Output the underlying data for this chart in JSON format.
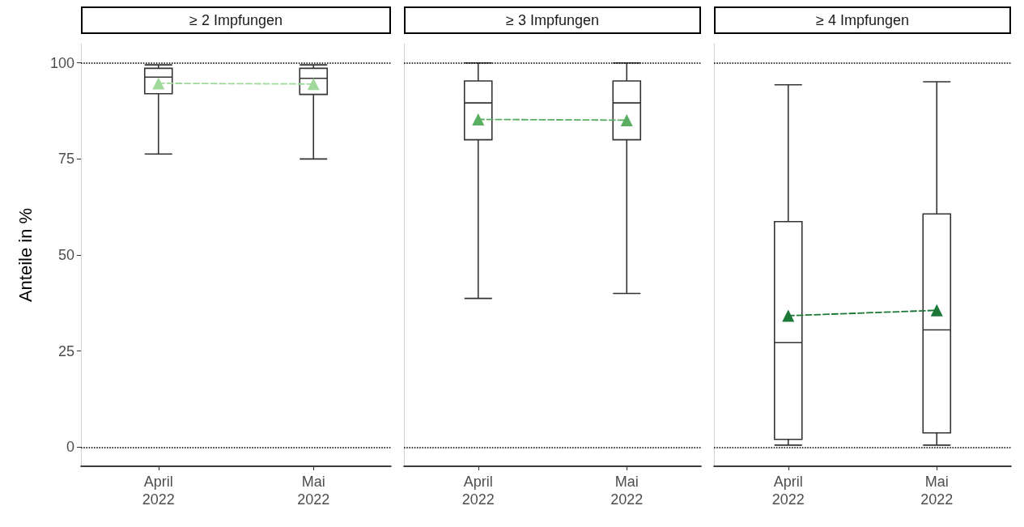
{
  "chart_data": [
    {
      "type": "box",
      "title": "≥ 2 Impfungen",
      "ylabel": "Anteile in %",
      "categories": [
        "April\n2022",
        "Mai\n2022"
      ],
      "ylim": [
        -5,
        105
      ],
      "yticks": [
        0,
        25,
        50,
        75,
        100
      ],
      "grid": false,
      "marker": "triangle",
      "line_style": "dashed",
      "ref_lines": [
        {
          "axis": "y",
          "value": 0,
          "line_style": "dotted"
        },
        {
          "axis": "y",
          "value": 100,
          "line_style": "dotted"
        }
      ],
      "series": [
        {
          "color": "#333333",
          "boxes": [
            {
              "low": 76.3,
              "q1": 92,
              "median": 96.3,
              "q3": 98.6,
              "high": 99.5
            },
            {
              "low": 75,
              "q1": 91.8,
              "median": 96,
              "q3": 98.6,
              "high": 99.5
            }
          ]
        },
        {
          "type": "line",
          "color": "#a1d99b",
          "values": [
            94.7,
            94.5
          ]
        }
      ]
    },
    {
      "type": "box",
      "title": "≥ 3 Impfungen",
      "categories": [
        "April\n2022",
        "Mai\n2022"
      ],
      "ylim": [
        -5,
        105
      ],
      "yticks": [
        0,
        25,
        50,
        75,
        100
      ],
      "grid": false,
      "tick_labels": "x",
      "marker": "triangle",
      "line_style": "dashed",
      "ref_lines": [
        {
          "axis": "y",
          "value": 0,
          "line_style": "dotted"
        },
        {
          "axis": "y",
          "value": 100,
          "line_style": "dotted"
        }
      ],
      "series": [
        {
          "color": "#333333",
          "boxes": [
            {
              "low": 38.7,
              "q1": 80,
              "median": 89.6,
              "q3": 95.3,
              "high": 100
            },
            {
              "low": 40,
              "q1": 80,
              "median": 89.6,
              "q3": 95.3,
              "high": 100
            }
          ]
        },
        {
          "type": "line",
          "color": "#5aae61",
          "values": [
            85.3,
            85.1
          ]
        }
      ]
    },
    {
      "type": "box",
      "title": "≥ 4 Impfungen",
      "categories": [
        "April\n2022",
        "Mai\n2022"
      ],
      "ylim": [
        -5,
        105
      ],
      "yticks": [
        0,
        25,
        50,
        75,
        100
      ],
      "grid": false,
      "tick_labels": "x",
      "marker": "triangle",
      "line_style": "dashed",
      "ref_lines": [
        {
          "axis": "y",
          "value": 0,
          "line_style": "dotted"
        },
        {
          "axis": "y",
          "value": 100,
          "line_style": "dotted"
        }
      ],
      "series": [
        {
          "color": "#333333",
          "boxes": [
            {
              "low": 0.5,
              "q1": 2,
              "median": 27.2,
              "q3": 58.7,
              "high": 94.3
            },
            {
              "low": 0.5,
              "q1": 3.7,
              "median": 30.5,
              "q3": 60.7,
              "high": 95.1
            }
          ]
        },
        {
          "type": "line",
          "color": "#1b7837",
          "values": [
            34.2,
            35.6
          ]
        }
      ]
    }
  ]
}
